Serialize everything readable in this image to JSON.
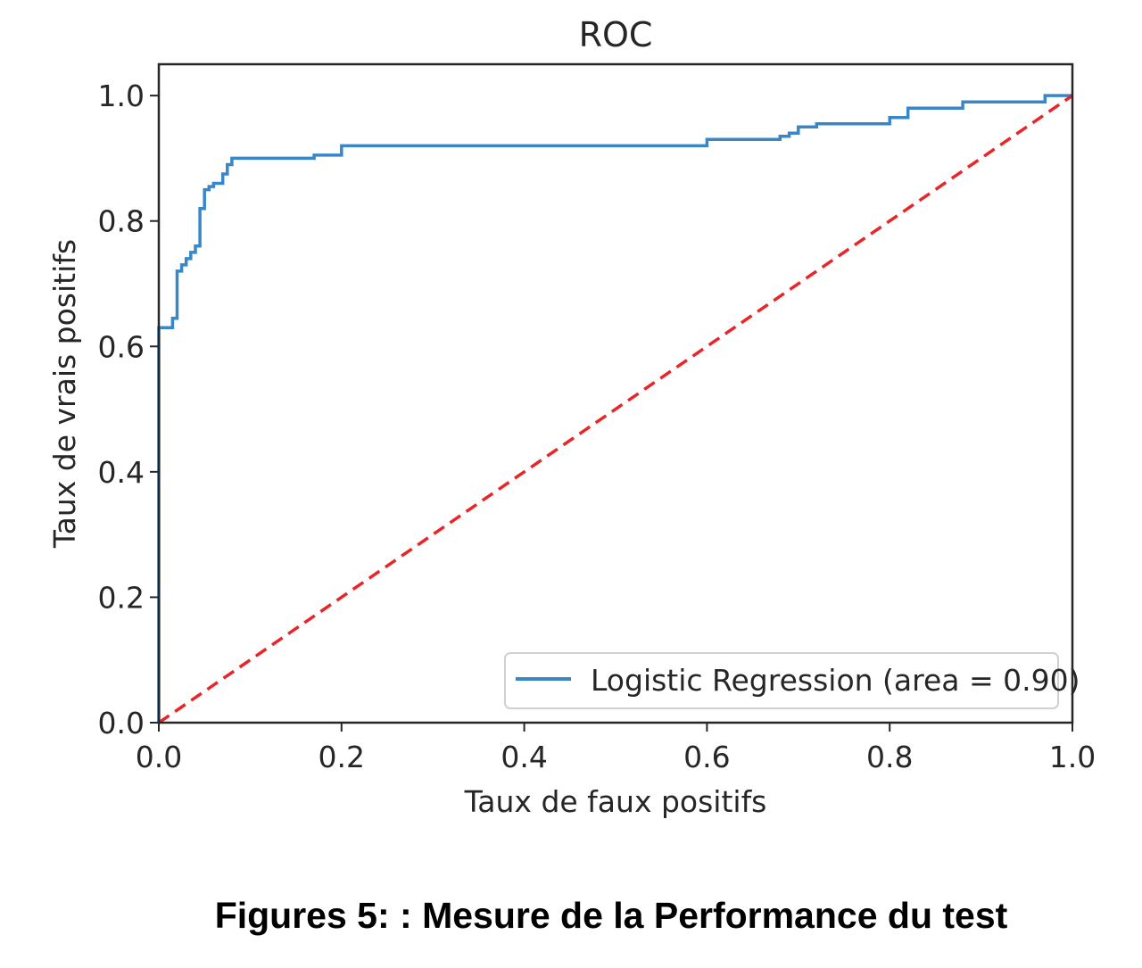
{
  "caption": "Figures 5: : Mesure de la Performance du test",
  "chart_data": {
    "type": "line",
    "title": "ROC",
    "xlabel": "Taux de faux positifs",
    "ylabel": "Taux de vrais positifs",
    "xlim": [
      0.0,
      1.0
    ],
    "ylim": [
      0.0,
      1.05
    ],
    "x_ticks": [
      "0.0",
      "0.2",
      "0.4",
      "0.6",
      "0.8",
      "1.0"
    ],
    "y_ticks": [
      "0.0",
      "0.2",
      "0.4",
      "0.6",
      "0.8",
      "1.0"
    ],
    "grid": false,
    "legend_position": "lower-right",
    "series": [
      {
        "name": "Logistic Regression (area = 0.90)",
        "color": "#3a87c8",
        "style": "solid",
        "x": [
          0.0,
          0.0,
          0.015,
          0.015,
          0.02,
          0.02,
          0.025,
          0.025,
          0.03,
          0.03,
          0.035,
          0.035,
          0.04,
          0.04,
          0.045,
          0.045,
          0.05,
          0.05,
          0.055,
          0.055,
          0.06,
          0.06,
          0.07,
          0.07,
          0.075,
          0.075,
          0.08,
          0.08,
          0.17,
          0.17,
          0.2,
          0.2,
          0.6,
          0.6,
          0.68,
          0.68,
          0.69,
          0.69,
          0.7,
          0.7,
          0.72,
          0.72,
          0.8,
          0.8,
          0.82,
          0.82,
          0.88,
          0.88,
          0.97,
          0.97,
          1.0
        ],
        "y": [
          0.0,
          0.63,
          0.63,
          0.645,
          0.645,
          0.72,
          0.72,
          0.73,
          0.73,
          0.74,
          0.74,
          0.75,
          0.75,
          0.76,
          0.76,
          0.82,
          0.82,
          0.85,
          0.85,
          0.855,
          0.855,
          0.86,
          0.86,
          0.875,
          0.875,
          0.89,
          0.89,
          0.9,
          0.9,
          0.905,
          0.905,
          0.92,
          0.92,
          0.93,
          0.93,
          0.935,
          0.935,
          0.94,
          0.94,
          0.95,
          0.95,
          0.955,
          0.955,
          0.965,
          0.965,
          0.98,
          0.98,
          0.99,
          0.99,
          1.0,
          1.0
        ]
      },
      {
        "name": "",
        "color": "#e8262a",
        "style": "dashed",
        "x": [
          0.0,
          1.0
        ],
        "y": [
          0.0,
          1.0
        ]
      }
    ]
  }
}
